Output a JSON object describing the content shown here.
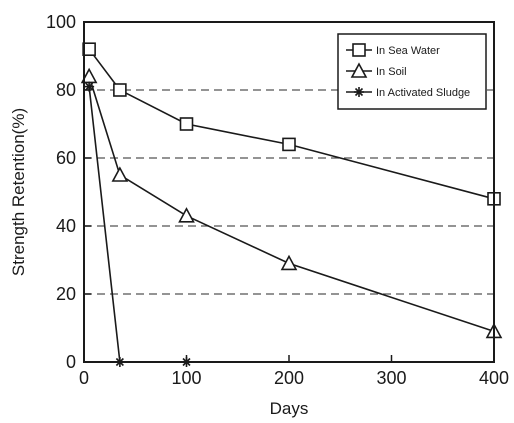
{
  "chart_data": {
    "type": "line",
    "title": "",
    "xlabel": "Days",
    "ylabel": "Strength Retention(%)",
    "xlim": [
      0,
      400
    ],
    "ylim": [
      0,
      100
    ],
    "xticks": [
      0,
      100,
      200,
      300,
      400
    ],
    "yticks": [
      0,
      20,
      40,
      60,
      80,
      100
    ],
    "grid": "dashed horizontal at 20, 40, 60, 80",
    "legend_position": "top-right",
    "series": [
      {
        "name": "In Sea Water",
        "marker": "square",
        "x": [
          5,
          35,
          100,
          200,
          400
        ],
        "y": [
          92,
          80,
          70,
          64,
          48
        ]
      },
      {
        "name": "In Soil",
        "marker": "triangle",
        "x": [
          5,
          35,
          100,
          200,
          400
        ],
        "y": [
          84,
          55,
          43,
          29,
          9
        ]
      },
      {
        "name": "In Activated Sludge",
        "marker": "asterisk",
        "x": [
          5,
          35,
          100
        ],
        "y": [
          81,
          0,
          0
        ]
      }
    ]
  },
  "colors": {
    "line": "#1a1a1a",
    "grid": "#555555",
    "background": "#ffffff"
  }
}
